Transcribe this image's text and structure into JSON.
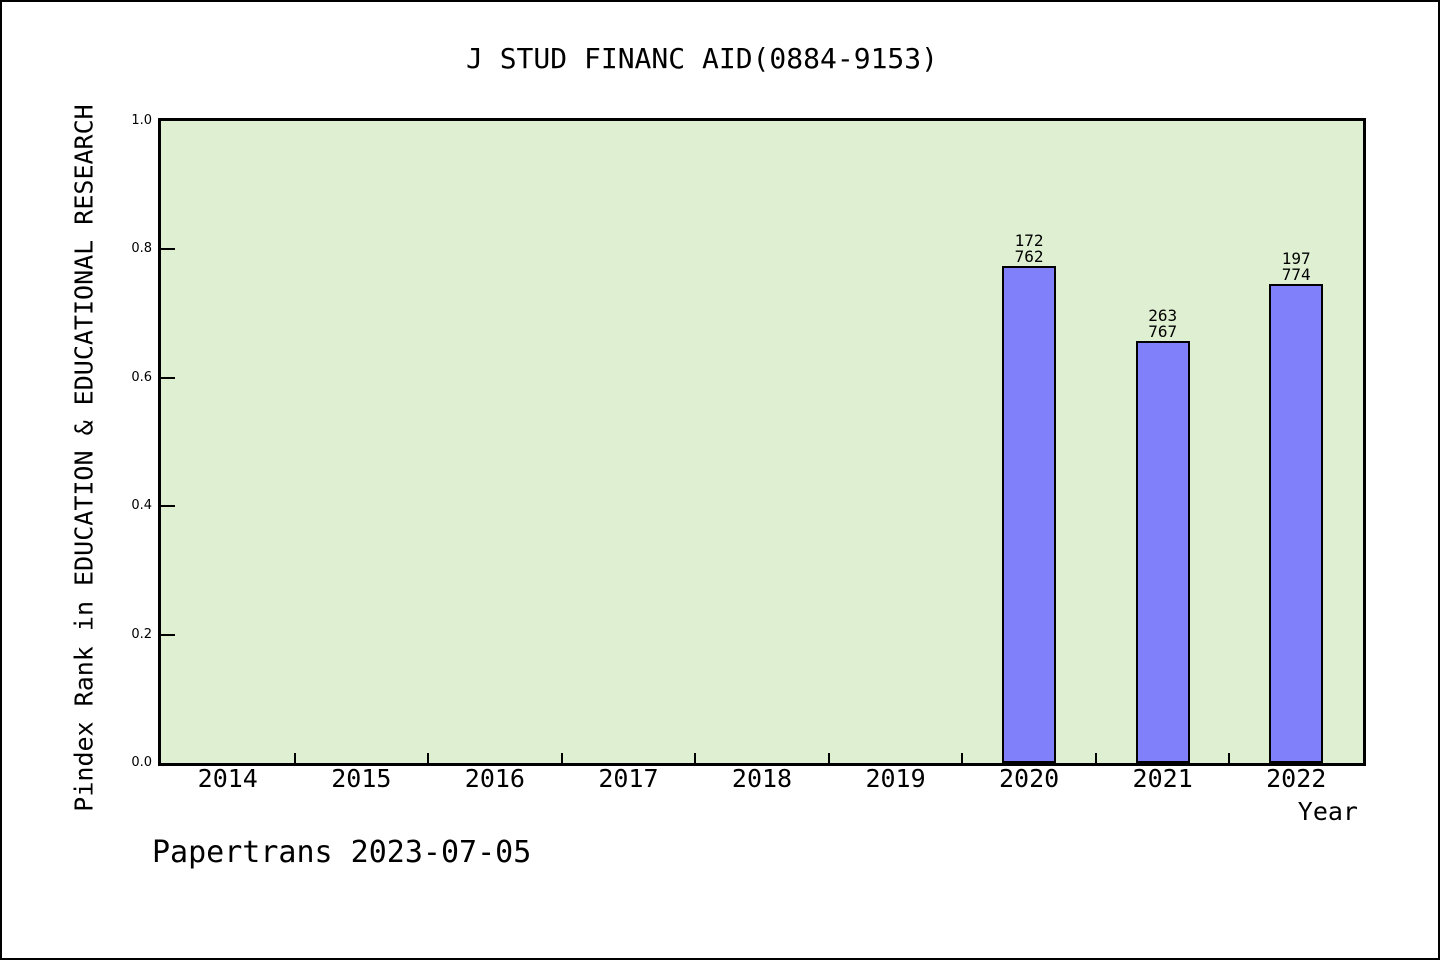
{
  "page": {
    "footer": "Papertrans 2023-07-05"
  },
  "chart_data": {
    "type": "bar",
    "title": "J STUD FINANC AID(0884-9153)",
    "xlabel": "Year",
    "ylabel": "Pindex Rank in EDUCATION & EDUCATIONAL RESEARCH",
    "x_categories": [
      2014,
      2015,
      2016,
      2017,
      2018,
      2019,
      2020,
      2021,
      2022
    ],
    "xlim": [
      2013.5,
      2022.5
    ],
    "ylim": [
      0.0,
      1.0
    ],
    "y_ticks": [
      0.0,
      0.2,
      0.4,
      0.6,
      0.8,
      1.0
    ],
    "grid": false,
    "legend": null,
    "bars": [
      {
        "year": 2020,
        "label_top": "172",
        "label_bottom": "762",
        "value": 0.7743
      },
      {
        "year": 2021,
        "label_top": "263",
        "label_bottom": "767",
        "value": 0.6571
      },
      {
        "year": 2022,
        "label_top": "197",
        "label_bottom": "774",
        "value": 0.7455
      }
    ],
    "colors": {
      "bar_fill": "#8080fa",
      "bar_border": "#000000",
      "plot_background": "#dff0d2",
      "text": "#000000"
    }
  }
}
